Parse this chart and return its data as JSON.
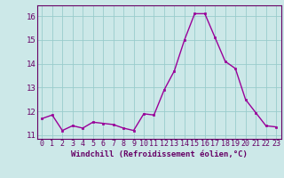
{
  "x": [
    0,
    1,
    2,
    3,
    4,
    5,
    6,
    7,
    8,
    9,
    10,
    11,
    12,
    13,
    14,
    15,
    16,
    17,
    18,
    19,
    20,
    21,
    22,
    23
  ],
  "y_values": [
    11.7,
    11.85,
    11.2,
    11.4,
    11.3,
    11.55,
    11.5,
    11.45,
    11.3,
    11.2,
    11.9,
    11.85,
    12.9,
    13.7,
    15.0,
    16.1,
    16.1,
    15.1,
    14.1,
    13.8,
    12.5,
    11.95,
    11.4,
    11.35
  ],
  "line_color": "#990099",
  "marker_color": "#990099",
  "bg_color": "#cce8e8",
  "grid_color": "#99cccc",
  "xlabel": "Windchill (Refroidissement éolien,°C)",
  "xlim": [
    -0.5,
    23.5
  ],
  "ylim": [
    10.85,
    16.45
  ],
  "yticks": [
    11,
    12,
    13,
    14,
    15,
    16
  ],
  "xticks": [
    0,
    1,
    2,
    3,
    4,
    5,
    6,
    7,
    8,
    9,
    10,
    11,
    12,
    13,
    14,
    15,
    16,
    17,
    18,
    19,
    20,
    21,
    22,
    23
  ],
  "font_color": "#660066",
  "tick_fontsize": 6.0,
  "xlabel_fontsize": 6.5,
  "linewidth": 1.0,
  "markersize": 2.0
}
